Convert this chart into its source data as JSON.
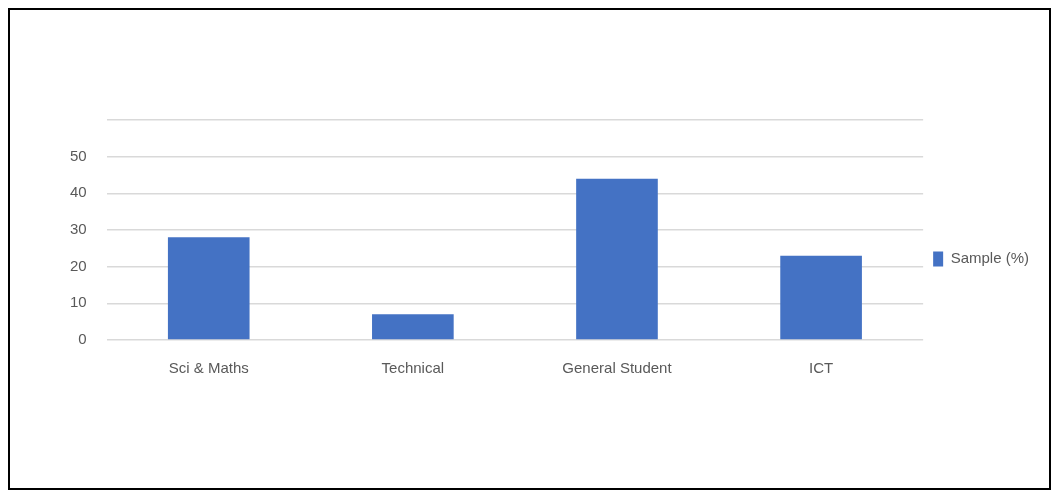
{
  "chart_data": {
    "type": "bar",
    "categories": [
      "Sci & Maths",
      "Technical",
      "General Student",
      "ICT"
    ],
    "series": [
      {
        "name": "Sample (%)",
        "color": "#4472c4",
        "values": [
          28,
          7,
          44,
          23
        ]
      }
    ],
    "ylim": [
      0,
      60
    ],
    "yticks": [
      0,
      10,
      20,
      30,
      40,
      50,
      {
        "value": 60,
        "label": null
      }
    ],
    "grid": "y",
    "legend": "right"
  }
}
